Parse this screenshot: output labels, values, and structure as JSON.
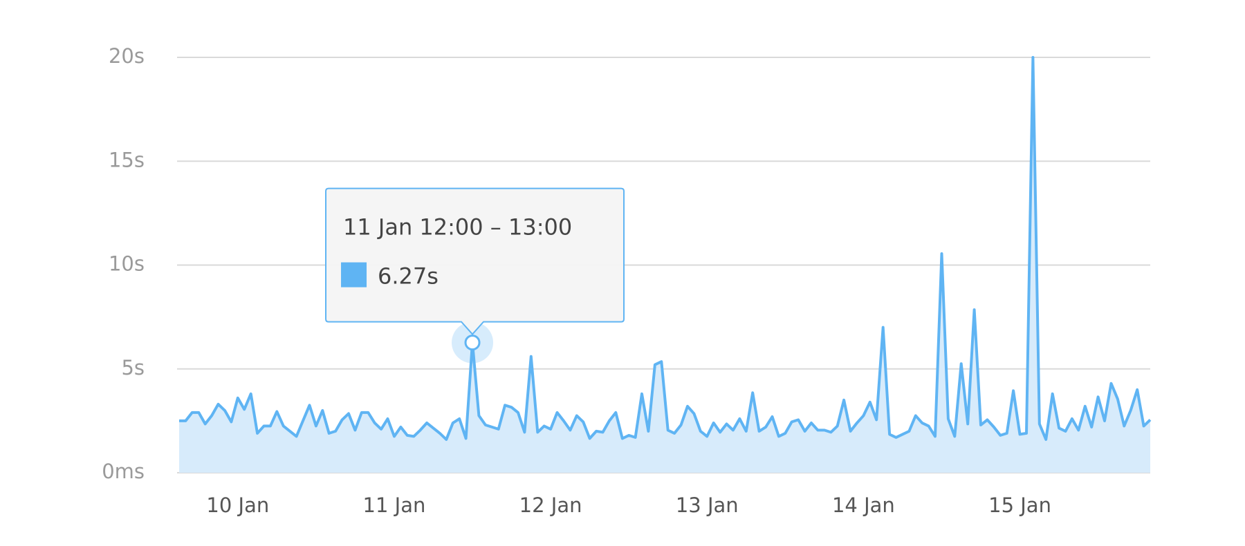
{
  "chart_data": {
    "type": "area",
    "color": "#5fb4f3",
    "fill": "#d7ebfb",
    "grid": true,
    "categories": [
      null,
      null,
      null,
      null,
      null,
      null,
      null,
      null,
      null,
      "10 Jan",
      null,
      null,
      null,
      null,
      null,
      null,
      null,
      null,
      null,
      null,
      null,
      null,
      null,
      null,
      null,
      null,
      null,
      null,
      null,
      null,
      null,
      null,
      null,
      "11 Jan",
      null,
      null,
      null,
      null,
      null,
      null,
      null,
      null,
      null,
      null,
      null,
      null,
      null,
      null,
      null,
      null,
      null,
      null,
      null,
      null,
      null,
      null,
      null,
      "12 Jan",
      null,
      null,
      null,
      null,
      null,
      null,
      null,
      null,
      null,
      null,
      null,
      null,
      null,
      null,
      null,
      null,
      null,
      null,
      null,
      null,
      null,
      null,
      null,
      "13 Jan",
      null,
      null,
      null,
      null,
      null,
      null,
      null,
      null,
      null,
      null,
      null,
      null,
      null,
      null,
      null,
      null,
      null,
      null,
      null,
      null,
      null,
      null,
      null,
      "14 Jan",
      null,
      null,
      null,
      null,
      null,
      null,
      null,
      null,
      null,
      null,
      null,
      null,
      null,
      null,
      null,
      null,
      null,
      null,
      null,
      null,
      null,
      null,
      null,
      "15 Jan",
      null,
      null,
      null,
      null,
      null,
      null,
      null,
      null,
      null,
      null,
      null,
      null,
      null,
      null,
      null,
      null,
      null,
      null,
      null,
      null
    ],
    "values": [
      2.5,
      2.5,
      2.9,
      2.9,
      2.35,
      2.75,
      3.3,
      3.0,
      2.45,
      3.6,
      3.05,
      3.8,
      1.9,
      2.25,
      2.25,
      2.95,
      2.25,
      2.0,
      1.75,
      2.5,
      3.25,
      2.25,
      3.0,
      1.9,
      2.0,
      2.55,
      2.85,
      2.05,
      2.9,
      2.9,
      2.4,
      2.1,
      2.6,
      1.75,
      2.2,
      1.8,
      1.75,
      2.05,
      2.4,
      2.15,
      1.9,
      1.6,
      2.4,
      2.6,
      1.65,
      6.27,
      2.75,
      2.3,
      2.2,
      2.1,
      3.25,
      3.15,
      2.9,
      1.95,
      5.6,
      1.95,
      2.25,
      2.1,
      2.9,
      2.5,
      2.05,
      2.75,
      2.45,
      1.65,
      2.0,
      1.95,
      2.5,
      2.9,
      1.65,
      1.8,
      1.7,
      3.8,
      2.0,
      5.2,
      5.35,
      2.05,
      1.9,
      2.3,
      3.2,
      2.85,
      2.0,
      1.75,
      2.4,
      1.95,
      2.35,
      2.05,
      2.6,
      2.0,
      3.85,
      2.0,
      2.2,
      2.7,
      1.75,
      1.9,
      2.45,
      2.55,
      2.0,
      2.4,
      2.05,
      2.05,
      1.95,
      2.25,
      3.5,
      2.0,
      2.4,
      2.75,
      3.4,
      2.55,
      7.0,
      1.85,
      1.7,
      1.85,
      2.0,
      2.75,
      2.4,
      2.25,
      1.75,
      10.55,
      2.6,
      1.75,
      5.25,
      2.35,
      7.85,
      2.3,
      2.55,
      2.2,
      1.8,
      1.9,
      3.95,
      1.85,
      1.9,
      20.0,
      2.35,
      1.6,
      3.8,
      2.15,
      2.0,
      2.6,
      2.05,
      3.2,
      2.2,
      3.65,
      2.5,
      4.3,
      3.55,
      2.25,
      3.0,
      4.0,
      2.25,
      2.55
    ],
    "ylim": [
      0,
      20
    ],
    "yticks": [
      {
        "value": 0,
        "label": "0ms"
      },
      {
        "value": 5,
        "label": "5s"
      },
      {
        "value": 10,
        "label": "10s"
      },
      {
        "value": 15,
        "label": "15s"
      },
      {
        "value": 20,
        "label": "20s"
      }
    ],
    "tooltip": {
      "title": "11 Jan 12:00 – 13:00",
      "value": 6.27,
      "label": "6.27s"
    }
  }
}
